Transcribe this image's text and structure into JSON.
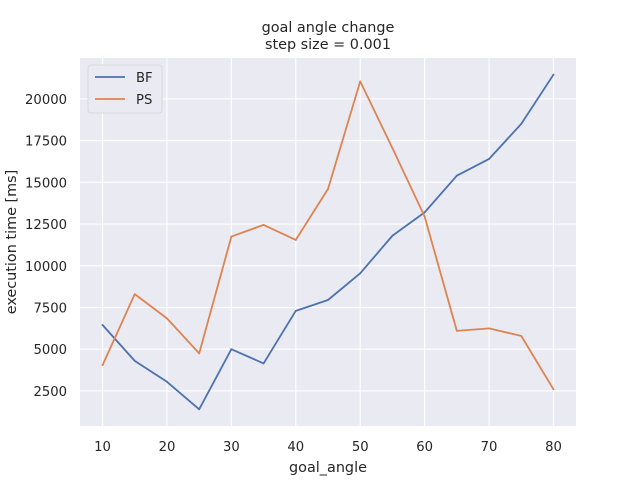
{
  "chart_data": {
    "type": "line",
    "title": "goal angle change\nstep size = 0.001",
    "title_lines": [
      "goal angle change",
      "step size = 0.001"
    ],
    "xlabel": "goal_angle",
    "ylabel": "execution time [ms]",
    "x": [
      10,
      15,
      20,
      25,
      30,
      35,
      40,
      45,
      50,
      55,
      60,
      65,
      70,
      75,
      80
    ],
    "series": [
      {
        "name": "BF",
        "color": "#4c72b0",
        "values": [
          6450,
          4300,
          3050,
          1400,
          5000,
          4150,
          7300,
          7950,
          9550,
          11800,
          13200,
          15400,
          16400,
          18500,
          21450
        ]
      },
      {
        "name": "PS",
        "color": "#dd8452",
        "values": [
          4050,
          8300,
          6850,
          4750,
          11750,
          12450,
          11550,
          14600,
          21050,
          17050,
          12950,
          6100,
          6250,
          5800,
          2600
        ]
      }
    ],
    "xticks": [
      10,
      20,
      30,
      40,
      50,
      60,
      70,
      80
    ],
    "xtick_labels": [
      "10",
      "20",
      "30",
      "40",
      "50",
      "60",
      "70",
      "80"
    ],
    "yticks": [
      2500,
      5000,
      7500,
      10000,
      12500,
      15000,
      17500,
      20000
    ],
    "ytick_labels": [
      "2500",
      "5000",
      "7500",
      "10000",
      "12500",
      "15000",
      "17500",
      "20000"
    ],
    "xlim": [
      6.5,
      83.5
    ],
    "ylim": [
      400,
      22450
    ],
    "grid": true,
    "legend_position": "upper-left",
    "background_color": "#eaeaf2",
    "grid_color": "#ffffff"
  }
}
